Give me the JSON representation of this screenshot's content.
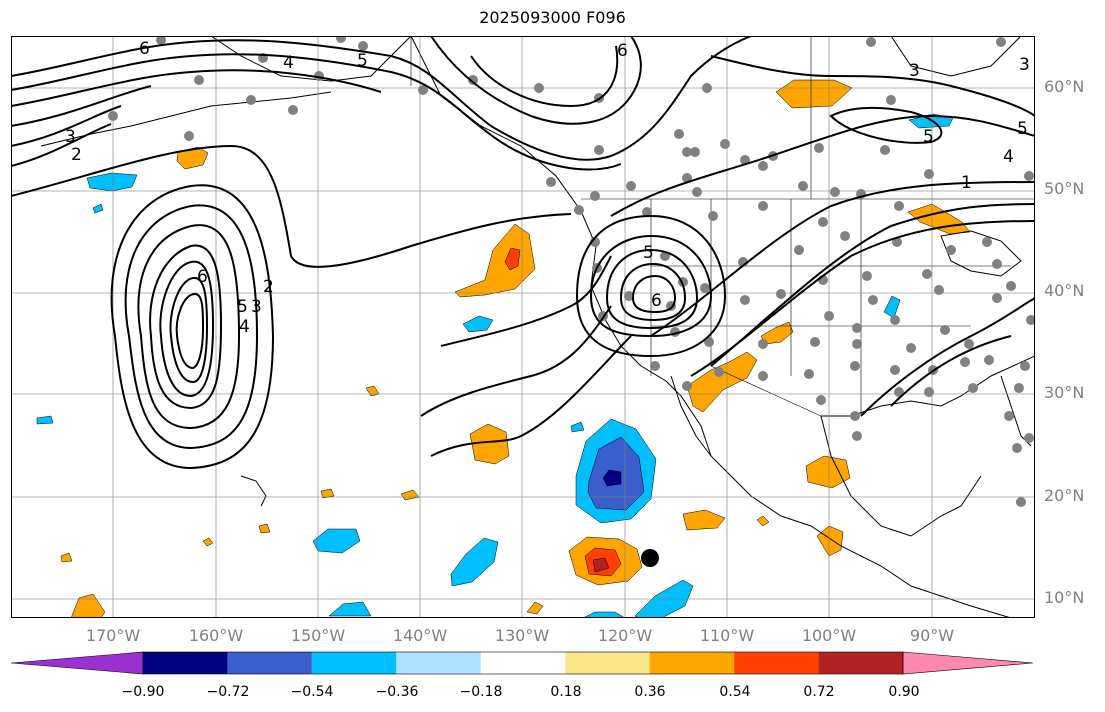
{
  "title": "2025093000 F096",
  "lat_labels": [
    {
      "id": "60",
      "text": "60°N"
    },
    {
      "id": "50",
      "text": "50°N"
    },
    {
      "id": "40",
      "text": "40°N"
    },
    {
      "id": "30",
      "text": "30°N"
    },
    {
      "id": "20",
      "text": "20°N"
    },
    {
      "id": "10",
      "text": "10°N"
    }
  ],
  "lon_labels": [
    {
      "id": "170w",
      "text": "170°W"
    },
    {
      "id": "160w",
      "text": "160°W"
    },
    {
      "id": "150w",
      "text": "150°W"
    },
    {
      "id": "140w",
      "text": "140°W"
    },
    {
      "id": "130w",
      "text": "130°W"
    },
    {
      "id": "120w",
      "text": "120°W"
    },
    {
      "id": "110w",
      "text": "110°W"
    },
    {
      "id": "100w",
      "text": "100°W"
    },
    {
      "id": "90w",
      "text": "90°W"
    }
  ],
  "colorbar": {
    "colors": [
      "#9b30d0",
      "#000080",
      "#3a5fcd",
      "#00bfff",
      "#b0e2ff",
      "#ffffff",
      "#fde68a",
      "#ffa500",
      "#ff4000",
      "#b22222",
      "#ff88b0"
    ],
    "labels": [
      "−0.90",
      "−0.72",
      "−0.54",
      "−0.36",
      "−0.18",
      "0.18",
      "0.36",
      "0.54",
      "0.72",
      "0.90"
    ]
  },
  "contour_labels": [
    {
      "id": "c6-a",
      "text": "6"
    },
    {
      "id": "c5-a",
      "text": "5"
    },
    {
      "id": "c4-a",
      "text": "4"
    },
    {
      "id": "c3-a",
      "text": "3"
    },
    {
      "id": "c2-a",
      "text": "2"
    },
    {
      "id": "c6-b",
      "text": "6"
    },
    {
      "id": "c5-b",
      "text": "5"
    },
    {
      "id": "c4-b",
      "text": "4"
    },
    {
      "id": "c3-b",
      "text": "3"
    },
    {
      "id": "c2-b",
      "text": "2"
    },
    {
      "id": "c6-c",
      "text": "6"
    },
    {
      "id": "c5-c",
      "text": "5"
    },
    {
      "id": "c6-d",
      "text": "6"
    },
    {
      "id": "c3-c",
      "text": "3"
    },
    {
      "id": "c5-d",
      "text": "5"
    },
    {
      "id": "c5-e",
      "text": "5"
    },
    {
      "id": "c4-c",
      "text": "4"
    },
    {
      "id": "c1-a",
      "text": "1"
    },
    {
      "id": "c3-d",
      "text": "3"
    }
  ],
  "colors": {
    "contour": "#000000",
    "grid": "#808080",
    "station_dot": "#808080",
    "storm_marker": "#000000"
  }
}
